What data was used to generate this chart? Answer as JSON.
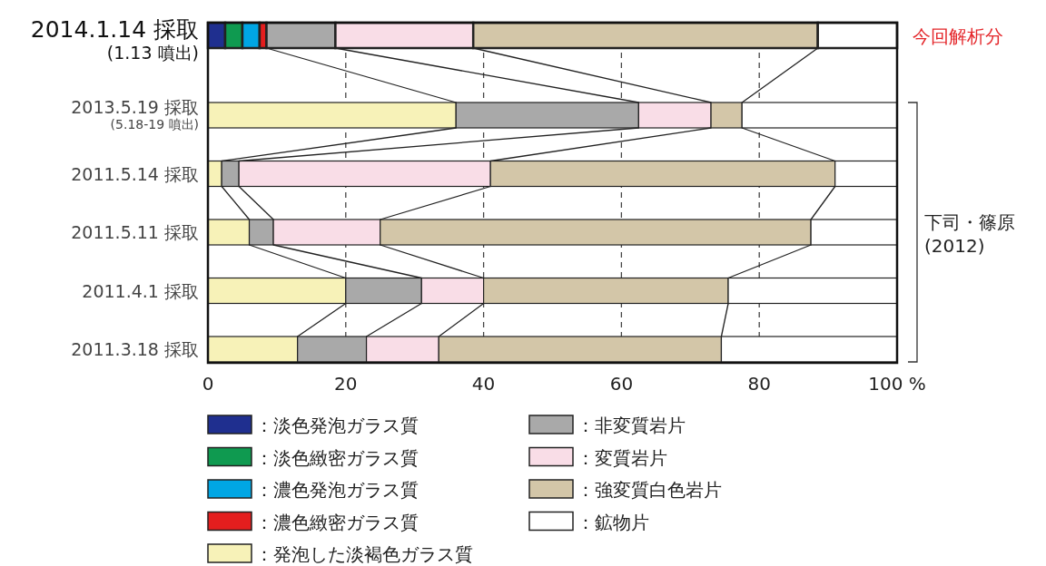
{
  "chart_data": {
    "type": "bar",
    "orientation": "horizontal",
    "stacked": true,
    "categories": [
      "2014.1.14 採取 (1.13 噴出)",
      "2013.5.19 採取 (5.18-19 噴出)",
      "2011.5.14 採取",
      "2011.5.11 採取",
      "2011.4.1 採取",
      "2011.3.18 採取"
    ],
    "series": [
      {
        "name": "：淡色発泡ガラス質",
        "color": "#1f2f8f",
        "values": [
          2.5,
          0,
          0,
          0,
          0,
          0
        ]
      },
      {
        "name": "：淡色緻密ガラス質",
        "color": "#0f9a50",
        "values": [
          2.5,
          0,
          0,
          0,
          0,
          0
        ]
      },
      {
        "name": "：濃色発泡ガラス質",
        "color": "#00a6e4",
        "values": [
          2.5,
          0,
          0,
          0,
          0,
          0
        ]
      },
      {
        "name": "：濃色緻密ガラス質",
        "color": "#e41e1e",
        "values": [
          1,
          0,
          0,
          0,
          0,
          0
        ]
      },
      {
        "name": "：発泡した淡褐色ガラス質",
        "color": "#f7f2b8",
        "values": [
          0,
          36,
          2,
          6,
          20,
          13
        ]
      },
      {
        "name": "：非変質岩片",
        "color": "#a9a9a9",
        "values": [
          10,
          26.5,
          2.5,
          3.5,
          11,
          10
        ]
      },
      {
        "name": "：変質岩片",
        "color": "#f9dde7",
        "values": [
          20,
          10.5,
          36.5,
          15.5,
          9,
          10.5
        ]
      },
      {
        "name": "：強変質白色岩片",
        "color": "#d3c6a8",
        "values": [
          50,
          4.5,
          50,
          62.5,
          35.5,
          41
        ]
      },
      {
        "name": "：鉱物片",
        "color": "#ffffff",
        "values": [
          11.5,
          22.5,
          9,
          12.5,
          24.5,
          25.5
        ]
      }
    ],
    "xlim": [
      0,
      100
    ],
    "xticks": [
      0,
      20,
      40,
      60,
      80,
      {
        "value": 100,
        "label": "100 %"
      }
    ],
    "grid": "x",
    "legend": "bottom",
    "annotations": [
      "今回解析分",
      "下司・篠原 (2012)"
    ]
  }
}
